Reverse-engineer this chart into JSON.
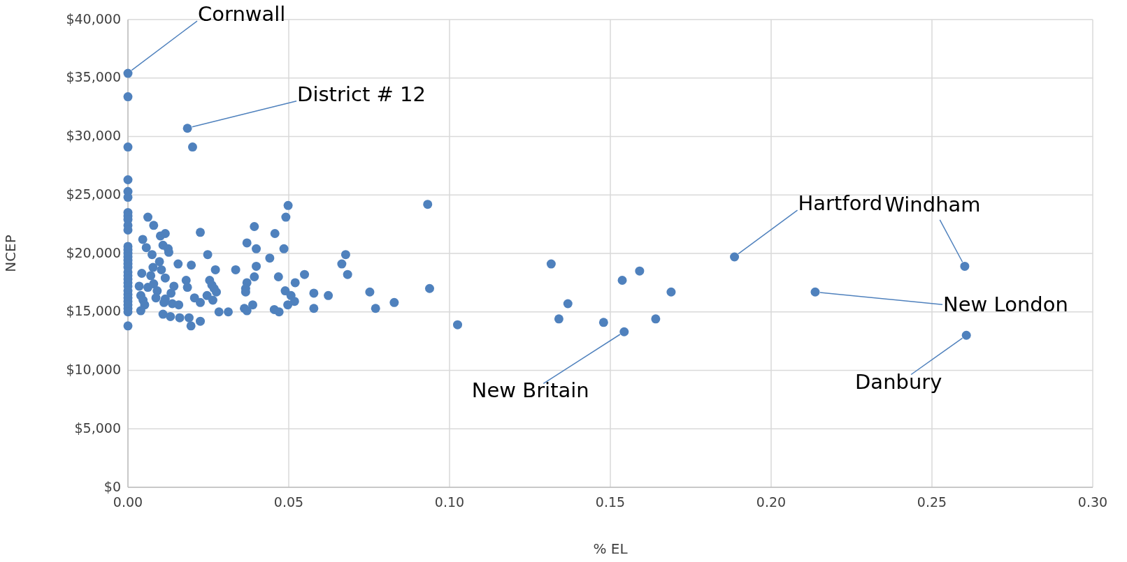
{
  "chart_data": {
    "type": "scatter",
    "xlabel": "% EL",
    "ylabel": "NCEP",
    "marker": "circle",
    "grid": true,
    "xlim": [
      0,
      0.3
    ],
    "xticks": [
      {
        "value": 0,
        "label": "0.00"
      },
      {
        "value": 0.05,
        "label": "0.05"
      },
      {
        "value": 0.1,
        "label": "0.10"
      },
      {
        "value": 0.15,
        "label": "0.15"
      },
      {
        "value": 0.2,
        "label": "0.20"
      },
      {
        "value": 0.25,
        "label": "0.25"
      },
      {
        "value": 0.3,
        "label": "0.30"
      }
    ],
    "ylim": [
      0,
      40000
    ],
    "yticks": [
      {
        "value": 0,
        "label": "$0"
      },
      {
        "value": 5000,
        "label": "$5,000"
      },
      {
        "value": 10000,
        "label": "$10,000"
      },
      {
        "value": 15000,
        "label": "$15,000"
      },
      {
        "value": 20000,
        "label": "$20,000"
      },
      {
        "value": 25000,
        "label": "$25,000"
      },
      {
        "value": 30000,
        "label": "$30,000"
      },
      {
        "value": 35000,
        "label": "$35,000"
      },
      {
        "value": 40000,
        "label": "$40,000"
      }
    ],
    "series": [
      {
        "color": "#4f81bd",
        "x": [
          0,
          0,
          0,
          0,
          0,
          0,
          0,
          0,
          0,
          0,
          0,
          0,
          0,
          0,
          0,
          0,
          0,
          0,
          0,
          0,
          0,
          0,
          0,
          0,
          0,
          0,
          0,
          0,
          0,
          0,
          0,
          0.0185,
          0.0201,
          0.0062,
          0.008,
          0.0101,
          0.0116,
          0.0225,
          0.0393,
          0.0498,
          0.0491,
          0.0457,
          0.0046,
          0.0057,
          0.0075,
          0.0109,
          0.0125,
          0.0127,
          0.037,
          0.0399,
          0.0485,
          0.0248,
          0.0441,
          0.0098,
          0.0078,
          0.0104,
          0.0156,
          0.0197,
          0.0272,
          0.0335,
          0.0399,
          0.0043,
          0.0071,
          0.0116,
          0.0181,
          0.0254,
          0.037,
          0.0393,
          0.0468,
          0.052,
          0.0549,
          0.0035,
          0.0062,
          0.008,
          0.0143,
          0.0185,
          0.0261,
          0.0268,
          0.0366,
          0.0091,
          0.0134,
          0.004,
          0.0246,
          0.0275,
          0.0366,
          0.0489,
          0.0507,
          0.0578,
          0.0623,
          0.0047,
          0.0087,
          0.0116,
          0.0207,
          0.0225,
          0.0264,
          0.0518,
          0.0112,
          0.0138,
          0.0158,
          0.0052,
          0.0497,
          0.0388,
          0.0578,
          0.004,
          0.0109,
          0.0132,
          0.0161,
          0.019,
          0.0196,
          0.0225,
          0.0283,
          0.0312,
          0.0362,
          0.037,
          0.0455,
          0.047,
          0.0932,
          0.0677,
          0.0665,
          0.0683,
          0.0752,
          0.077,
          0.0828,
          0.0938,
          0.1025,
          0.1316,
          0.1537,
          0.1591,
          0.1689,
          0.1368,
          0.134,
          0.1479,
          0.1641,
          0.1543,
          0.1886,
          0.2137,
          0.2602,
          0.2607
        ],
        "values": [
          35400,
          33400,
          29100,
          26300,
          25300,
          24800,
          23500,
          23200,
          22900,
          22400,
          22000,
          20600,
          20300,
          20000,
          19700,
          19400,
          19100,
          18800,
          18400,
          18100,
          17800,
          17500,
          17200,
          16800,
          16500,
          16200,
          15900,
          15600,
          15300,
          15000,
          13800,
          30700,
          29100,
          23100,
          22400,
          21500,
          21700,
          21800,
          22300,
          24100,
          23100,
          21700,
          21200,
          20500,
          19900,
          20700,
          20400,
          20100,
          20900,
          20400,
          20400,
          19900,
          19600,
          19300,
          18800,
          18600,
          19100,
          19000,
          18600,
          18600,
          18900,
          18300,
          18100,
          17900,
          17700,
          17700,
          17500,
          18000,
          18000,
          17500,
          18200,
          17200,
          17100,
          17400,
          17200,
          17100,
          17300,
          17000,
          17000,
          16800,
          16600,
          16400,
          16400,
          16700,
          16700,
          16800,
          16400,
          16600,
          16400,
          16000,
          16200,
          16100,
          16200,
          15800,
          16000,
          15900,
          15800,
          15700,
          15600,
          15600,
          15600,
          15600,
          15300,
          15100,
          14800,
          14600,
          14500,
          14500,
          13800,
          14200,
          15000,
          15000,
          15300,
          15100,
          15200,
          15000,
          24200,
          19900,
          19100,
          18200,
          16700,
          15300,
          15800,
          17000,
          13900,
          19100,
          17700,
          18500,
          16700,
          15700,
          14400,
          14100,
          14400,
          13300,
          19700,
          16700,
          18900,
          13000
        ]
      }
    ],
    "annotations": [
      {
        "text": "Cornwall",
        "x": 0,
        "y": 35400
      },
      {
        "text": "District # 12",
        "x": 0.0185,
        "y": 30700
      },
      {
        "text": "Hartford",
        "x": 0.1886,
        "y": 19700
      },
      {
        "text": "Windham",
        "x": 0.2602,
        "y": 18900
      },
      {
        "text": "New London",
        "x": 0.2137,
        "y": 16700
      },
      {
        "text": "New Britain",
        "x": 0.1543,
        "y": 13300
      },
      {
        "text": "Danbury",
        "x": 0.2607,
        "y": 13000
      }
    ]
  }
}
